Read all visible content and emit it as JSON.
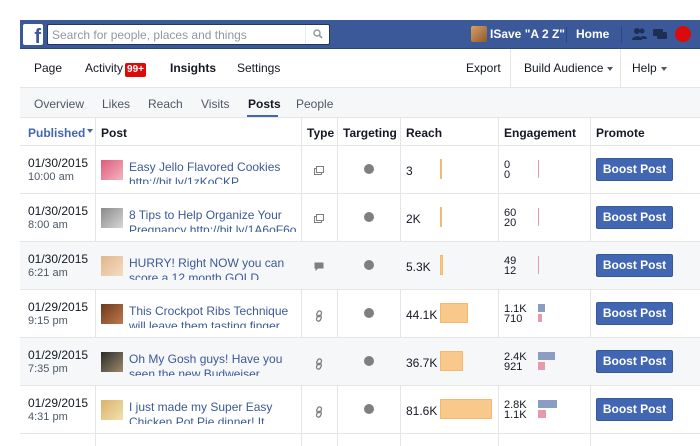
{
  "header": {
    "search_placeholder": "Search for people, places and things",
    "user_name": "ISave \"A 2 Z\"",
    "home_label": "Home"
  },
  "pagenav": {
    "page": "Page",
    "activity": "Activity",
    "activity_badge": "99+",
    "insights": "Insights",
    "settings": "Settings",
    "export": "Export",
    "build_audience": "Build Audience",
    "help": "Help"
  },
  "subtabs": [
    "Overview",
    "Likes",
    "Reach",
    "Visits",
    "Posts",
    "People"
  ],
  "subtabs_active": "Posts",
  "columns": {
    "published": "Published",
    "post": "Post",
    "type": "Type",
    "targeting": "Targeting",
    "reach": "Reach",
    "engagement": "Engagement",
    "promote": "Promote"
  },
  "boost_label": "Boost Post",
  "rows": [
    {
      "date": "01/30/2015",
      "time": "10:00 am",
      "text": "Easy Jello Flavored Cookies http://bit.ly/1zKoCKP",
      "type": "photo",
      "reach": "3",
      "reach_fraction": 0.03,
      "eng_top": "0",
      "eng_bottom": "0",
      "eng_frac_top": 0.0,
      "eng_frac_bottom": 0.0
    },
    {
      "date": "01/30/2015",
      "time": "8:00 am",
      "text": "8 Tips to Help Organize Your Pregnancy http://bit.ly/1A6oF6o",
      "type": "photo",
      "reach": "2K",
      "reach_fraction": 0.03,
      "eng_top": "60",
      "eng_bottom": "20",
      "eng_frac_top": 0.0,
      "eng_frac_bottom": 0.0
    },
    {
      "date": "01/30/2015",
      "time": "6:21 am",
      "text": "HURRY! Right NOW you can score a 12 month GOLD",
      "type": "status",
      "reach": "5.3K",
      "reach_fraction": 0.06,
      "eng_top": "49",
      "eng_bottom": "12",
      "eng_frac_top": 0.0,
      "eng_frac_bottom": 0.0
    },
    {
      "date": "01/29/2015",
      "time": "9:15 pm",
      "text": "This Crockpot Ribs Technique will leave them tasting finger",
      "type": "link",
      "reach": "44.1K",
      "reach_fraction": 0.54,
      "eng_top": "1.1K",
      "eng_bottom": "710",
      "eng_frac_top": 0.3,
      "eng_frac_bottom": 0.2
    },
    {
      "date": "01/29/2015",
      "time": "7:35 pm",
      "text": "Oh My Gosh guys! Have you seen the new Budweiser",
      "type": "link",
      "reach": "36.7K",
      "reach_fraction": 0.45,
      "eng_top": "2.4K",
      "eng_bottom": "921",
      "eng_frac_top": 0.75,
      "eng_frac_bottom": 0.3
    },
    {
      "date": "01/29/2015",
      "time": "4:31 pm",
      "text": "I just made my Super Easy Chicken Pot Pie dinner! It smells",
      "type": "link",
      "reach": "81.6K",
      "reach_fraction": 1.0,
      "eng_top": "2.8K",
      "eng_bottom": "1.1K",
      "eng_frac_top": 0.85,
      "eng_frac_bottom": 0.35
    }
  ]
}
